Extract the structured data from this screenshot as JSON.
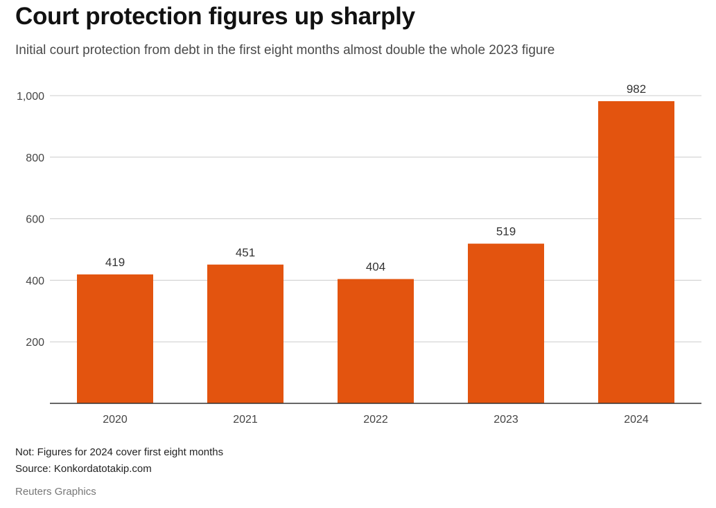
{
  "title": "Court protection figures up sharply",
  "subtitle": "Initial court protection from debt in the first eight months almost double the whole 2023 figure",
  "note": "Not: Figures for 2024 cover first eight months",
  "source": "Source: Konkordatotakip.com",
  "credit": "Reuters Graphics",
  "colors": {
    "bar": "#e3540f",
    "grid": "#cccccc",
    "axis": "#333333"
  },
  "chart_data": {
    "type": "bar",
    "categories": [
      "2020",
      "2021",
      "2022",
      "2023",
      "2024"
    ],
    "values": [
      419,
      451,
      404,
      519,
      982
    ],
    "data_labels": [
      "419",
      "451",
      "404",
      "519",
      "982"
    ],
    "ylim": [
      0,
      1000
    ],
    "yticks": [
      200,
      400,
      600,
      800,
      1000
    ],
    "ytick_labels": [
      "200",
      "400",
      "600",
      "800",
      "1,000"
    ],
    "grid": true,
    "xlabel": "",
    "ylabel": ""
  }
}
